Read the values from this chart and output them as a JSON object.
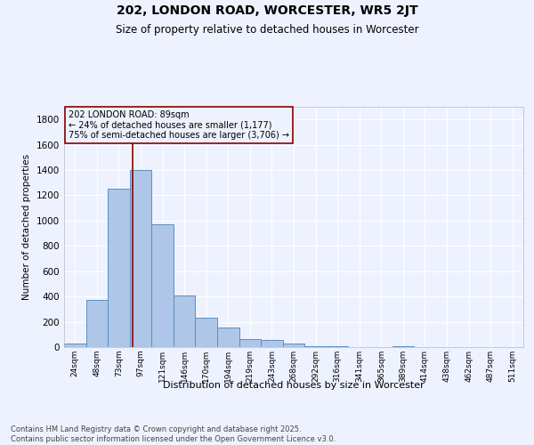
{
  "title": "202, LONDON ROAD, WORCESTER, WR5 2JT",
  "subtitle": "Size of property relative to detached houses in Worcester",
  "xlabel": "Distribution of detached houses by size in Worcester",
  "ylabel": "Number of detached properties",
  "bar_labels": [
    "24sqm",
    "48sqm",
    "73sqm",
    "97sqm",
    "121sqm",
    "146sqm",
    "170sqm",
    "194sqm",
    "219sqm",
    "243sqm",
    "268sqm",
    "292sqm",
    "316sqm",
    "341sqm",
    "365sqm",
    "389sqm",
    "414sqm",
    "438sqm",
    "462sqm",
    "487sqm",
    "511sqm"
  ],
  "bar_values": [
    30,
    370,
    1255,
    1400,
    970,
    410,
    230,
    155,
    60,
    55,
    30,
    5,
    10,
    3,
    2,
    10,
    2,
    1,
    1,
    1,
    1
  ],
  "bar_color": "#aec6e8",
  "bar_edge_color": "#5a8fc0",
  "ylim": [
    0,
    1900
  ],
  "yticks": [
    0,
    200,
    400,
    600,
    800,
    1000,
    1200,
    1400,
    1600,
    1800
  ],
  "vline_x": 2.64,
  "vline_color": "#8b0000",
  "annotation_text": "202 LONDON ROAD: 89sqm\n← 24% of detached houses are smaller (1,177)\n75% of semi-detached houses are larger (3,706) →",
  "annotation_box_color": "#8b0000",
  "background_color": "#eef2ff",
  "grid_color": "#ffffff",
  "footer": "Contains HM Land Registry data © Crown copyright and database right 2025.\nContains public sector information licensed under the Open Government Licence v3.0."
}
